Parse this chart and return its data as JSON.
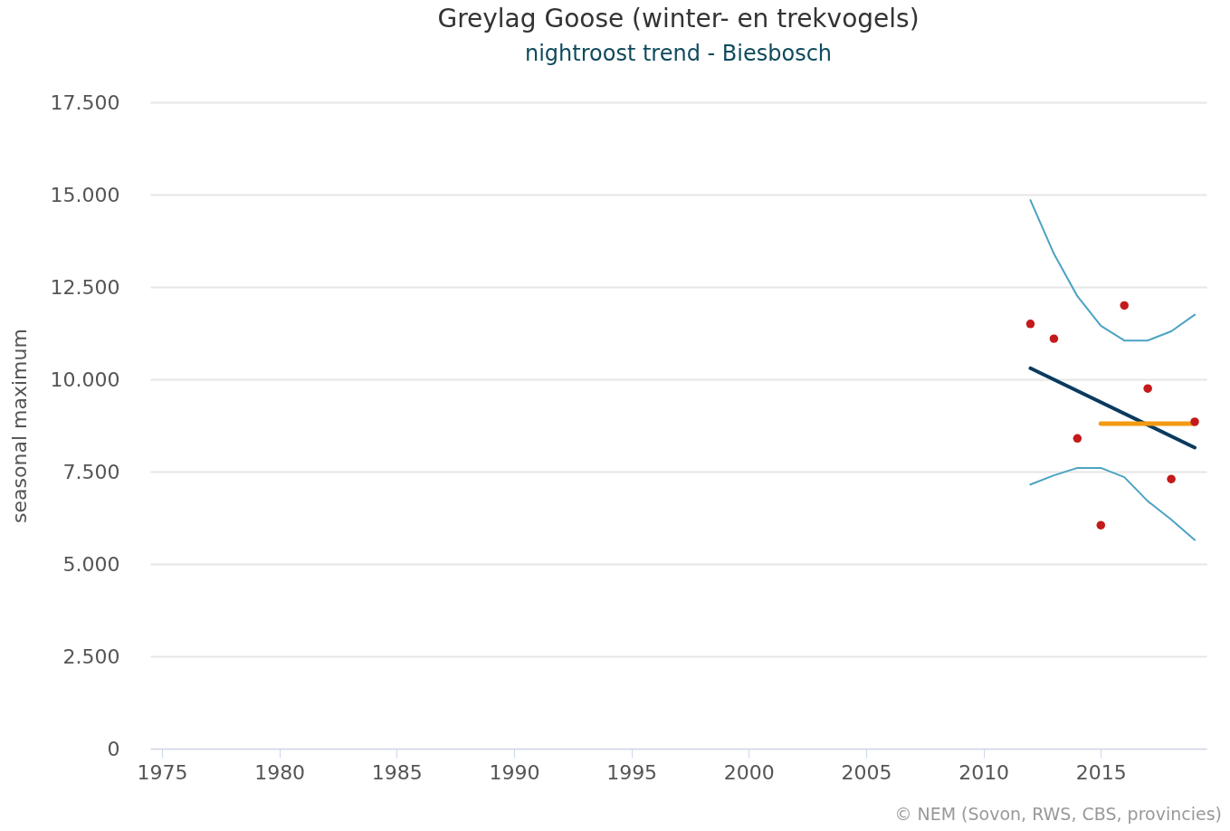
{
  "chart_data": {
    "type": "scatter",
    "title": "Greylag Goose (winter- en trekvogels)",
    "subtitle": "nightroost trend - Biesbosch",
    "ylabel": "seasonal maximum",
    "annotations": [
      "© NEM (Sovon, RWS, CBS, provincies)"
    ],
    "xlim": [
      1974.5,
      2019.5
    ],
    "xticks": [
      1975,
      1980,
      1985,
      1990,
      1995,
      2000,
      2005,
      2010,
      2015
    ],
    "ylim": [
      0,
      17500
    ],
    "yticks": [
      0,
      {
        "value": 2500,
        "label": "2.500"
      },
      {
        "value": 5000,
        "label": "5.000"
      },
      {
        "value": 7500,
        "label": "7.500"
      },
      {
        "value": 10000,
        "label": "10.000"
      },
      {
        "value": 12500,
        "label": "12.500"
      },
      {
        "value": 15000,
        "label": "15.000"
      },
      {
        "value": 17500,
        "label": "17.500"
      }
    ],
    "grid": "y",
    "line_style": "solid",
    "series": [
      {
        "type": "line",
        "color": "#4ba3c3",
        "x": [
          2012,
          2013,
          2014,
          2015,
          2016,
          2017,
          2018,
          2019
        ],
        "values": [
          14850,
          13400,
          12250,
          11450,
          11050,
          11050,
          11300,
          11750
        ]
      },
      {
        "type": "line",
        "color": "#4ba3c3",
        "x": [
          2012,
          2013,
          2014,
          2015,
          2016,
          2017,
          2018,
          2019
        ],
        "values": [
          7150,
          7400,
          7600,
          7600,
          7350,
          6700,
          6200,
          5650
        ]
      },
      {
        "type": "line",
        "color": "#0b3a5e",
        "x": [
          2012,
          2019
        ],
        "values": [
          10300,
          8150
        ]
      },
      {
        "type": "line",
        "color": "#f39a12",
        "x": [
          2015,
          2019
        ],
        "values": [
          8800,
          8800
        ]
      },
      {
        "marker": "circle",
        "color": "#c41a1a",
        "x": [
          2012,
          2013,
          2014,
          2015,
          2016,
          2017,
          2018,
          2019
        ],
        "values": [
          11500,
          11100,
          8400,
          6050,
          12000,
          9750,
          7300,
          8850
        ]
      }
    ]
  }
}
